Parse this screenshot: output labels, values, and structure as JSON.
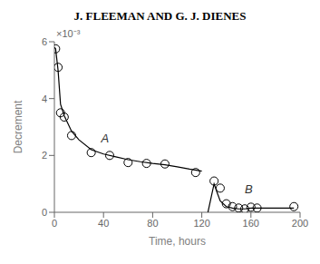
{
  "chart_data": {
    "type": "scatter",
    "title": "J. FLEEMAN AND G. J. DIENES",
    "x_label": "Time, hours",
    "y_label": "Decrement",
    "xlim": [
      0,
      200
    ],
    "ylim": [
      0,
      0.006
    ],
    "xticks": [
      0,
      40,
      80,
      120,
      160,
      200
    ],
    "yticks": [
      0,
      {
        "value": 0.002,
        "label": "2"
      },
      {
        "value": 0.004,
        "label": "4"
      },
      {
        "value": 0.006,
        "label": "6"
      }
    ],
    "grid": false,
    "series": [
      {
        "type": "line",
        "color": "#000000",
        "x": [
          0,
          1,
          3,
          5,
          8,
          14,
          20,
          30,
          40,
          50,
          60,
          70,
          80,
          90,
          100,
          110,
          120
        ],
        "values": [
          0.0058,
          0.00575,
          0.005,
          0.0038,
          0.0034,
          0.00285,
          0.00255,
          0.0022,
          0.00205,
          0.00195,
          0.00185,
          0.00178,
          0.00172,
          0.00167,
          0.0016,
          0.00152,
          0.00145
        ]
      },
      {
        "type": "scatter",
        "color": "#000000",
        "marker": "open_circle",
        "x": [
          1,
          3,
          5,
          8,
          14,
          30,
          45,
          60,
          75,
          90,
          115
        ],
        "values": [
          0.00575,
          0.0051,
          0.0035,
          0.00335,
          0.0027,
          0.0021,
          0.002,
          0.00175,
          0.00172,
          0.0017,
          0.0014
        ]
      },
      {
        "type": "line",
        "color": "#000000",
        "x": [
          125,
          130,
          132,
          135,
          140,
          145,
          150,
          155,
          160,
          170,
          195
        ],
        "values": [
          0.0,
          0.001,
          0.00075,
          0.0004,
          0.0002,
          0.00015,
          0.00012,
          0.00012,
          0.00015,
          0.00015,
          0.00015
        ]
      },
      {
        "type": "scatter",
        "color": "#000000",
        "marker": "open_circle",
        "x": [
          130,
          135,
          140,
          145,
          150,
          155,
          160,
          165,
          195
        ],
        "values": [
          0.0011,
          0.00085,
          0.0003,
          0.0002,
          0.00015,
          0.00012,
          0.00018,
          0.00015,
          0.0002
        ]
      }
    ],
    "annotations": [
      {
        "text": "A",
        "x": 38,
        "y": 0.0026
      },
      {
        "text": "B",
        "x": 155,
        "y": 0.00082
      },
      {
        "text": "×10⁻³"
      }
    ]
  }
}
